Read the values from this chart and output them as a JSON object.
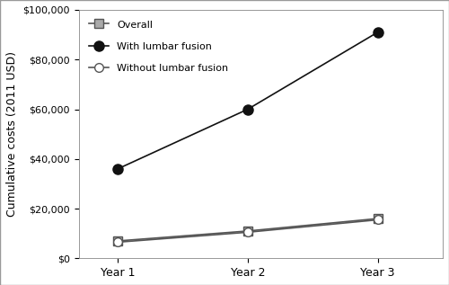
{
  "x_labels": [
    "Year 1",
    "Year 2",
    "Year 3"
  ],
  "x_values": [
    1,
    2,
    3
  ],
  "series": [
    {
      "label": "Overall",
      "values": [
        7000,
        11000,
        16000
      ],
      "color": "#555555",
      "marker": "s",
      "markersize": 7,
      "markerfacecolor": "#aaaaaa",
      "markeredgecolor": "#555555",
      "linewidth": 1.2,
      "zorder": 2
    },
    {
      "label": "With lumbar fusion",
      "values": [
        36000,
        60000,
        91000
      ],
      "color": "#111111",
      "marker": "o",
      "markersize": 8,
      "markerfacecolor": "#111111",
      "markeredgecolor": "#111111",
      "linewidth": 1.2,
      "zorder": 3
    },
    {
      "label": "Without lumbar fusion",
      "values": [
        6500,
        10500,
        15500
      ],
      "color": "#555555",
      "marker": "o",
      "markersize": 7,
      "markerfacecolor": "#ffffff",
      "markeredgecolor": "#555555",
      "linewidth": 1.2,
      "zorder": 4
    }
  ],
  "ylabel": "Cumulative costs (2011 USD)",
  "ylim": [
    0,
    100000
  ],
  "yticks": [
    0,
    20000,
    40000,
    60000,
    80000,
    100000
  ],
  "ytick_labels": [
    "$0",
    "$20,000",
    "$40,000",
    "$60,000",
    "$80,000",
    "$100,000"
  ],
  "xticks": [
    1,
    2,
    3
  ],
  "legend_loc": "upper left",
  "background_color": "#ffffff",
  "figure_width": 5.0,
  "figure_height": 3.17,
  "border_color": "#cccccc"
}
